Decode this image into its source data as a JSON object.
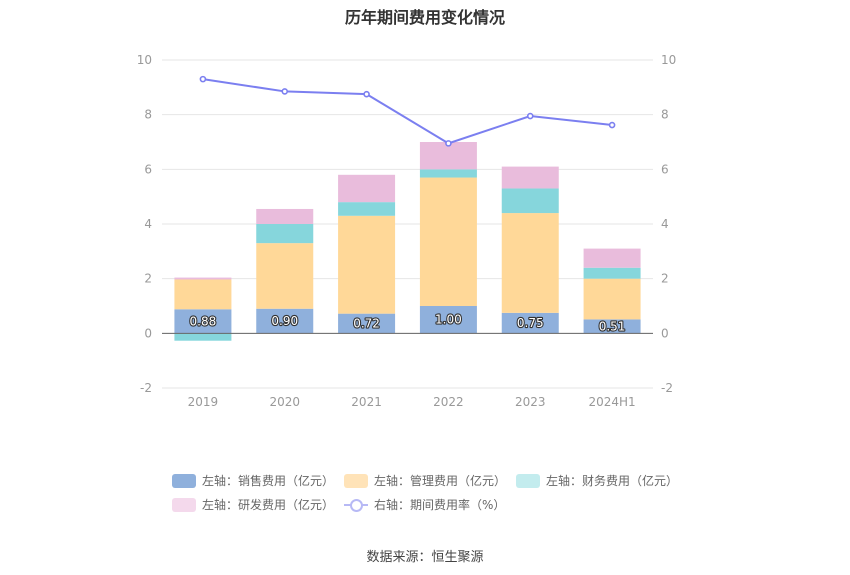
{
  "title": "历年期间费用变化情况",
  "source": "数据来源：恒生聚源",
  "chart_data": {
    "type": "bar",
    "stacked": true,
    "categories": [
      "2019",
      "2020",
      "2021",
      "2022",
      "2023",
      "2024H1"
    ],
    "left_axis": {
      "ticks": [
        "10",
        "8",
        "6",
        "4",
        "2",
        "0",
        "-2"
      ],
      "range": [
        -2,
        10
      ]
    },
    "right_axis": {
      "ticks": [
        "10",
        "8",
        "6",
        "4",
        "2",
        "0",
        "-2"
      ],
      "range": [
        -2,
        10
      ]
    },
    "series": [
      {
        "name": "左轴：销售费用（亿元）",
        "axis": "left",
        "color": "#8fb0dc",
        "values": [
          0.88,
          0.9,
          0.72,
          1.0,
          0.75,
          0.51
        ],
        "labels": [
          "0.88",
          "0.90",
          "0.72",
          "1.00",
          "0.75",
          "0.51"
        ]
      },
      {
        "name": "左轴：管理费用（亿元）",
        "axis": "left",
        "color": "#ffd898",
        "values": [
          1.09,
          2.4,
          3.58,
          4.7,
          3.65,
          1.49
        ]
      },
      {
        "name": "左轴：财务费用（亿元）",
        "axis": "left",
        "color": "#86d6dc",
        "values": [
          -0.27,
          0.7,
          0.5,
          0.3,
          0.9,
          0.4
        ]
      },
      {
        "name": "左轴：研发费用（亿元）",
        "axis": "left",
        "color": "#e9bcdc",
        "values": [
          0.07,
          0.55,
          1.0,
          1.0,
          0.8,
          0.7
        ]
      },
      {
        "name": "右轴：期间费用率（%）",
        "axis": "right",
        "type": "line",
        "color": "#7b7ff0",
        "values": [
          9.3,
          8.85,
          8.75,
          6.95,
          7.95,
          7.62
        ]
      }
    ],
    "legend_position": "bottom",
    "legend_colors": [
      "#8fb0dc",
      "#ffe3b8",
      "#c3ecee",
      "#f4d9ec",
      "#b7b9f5"
    ],
    "grid": true
  }
}
